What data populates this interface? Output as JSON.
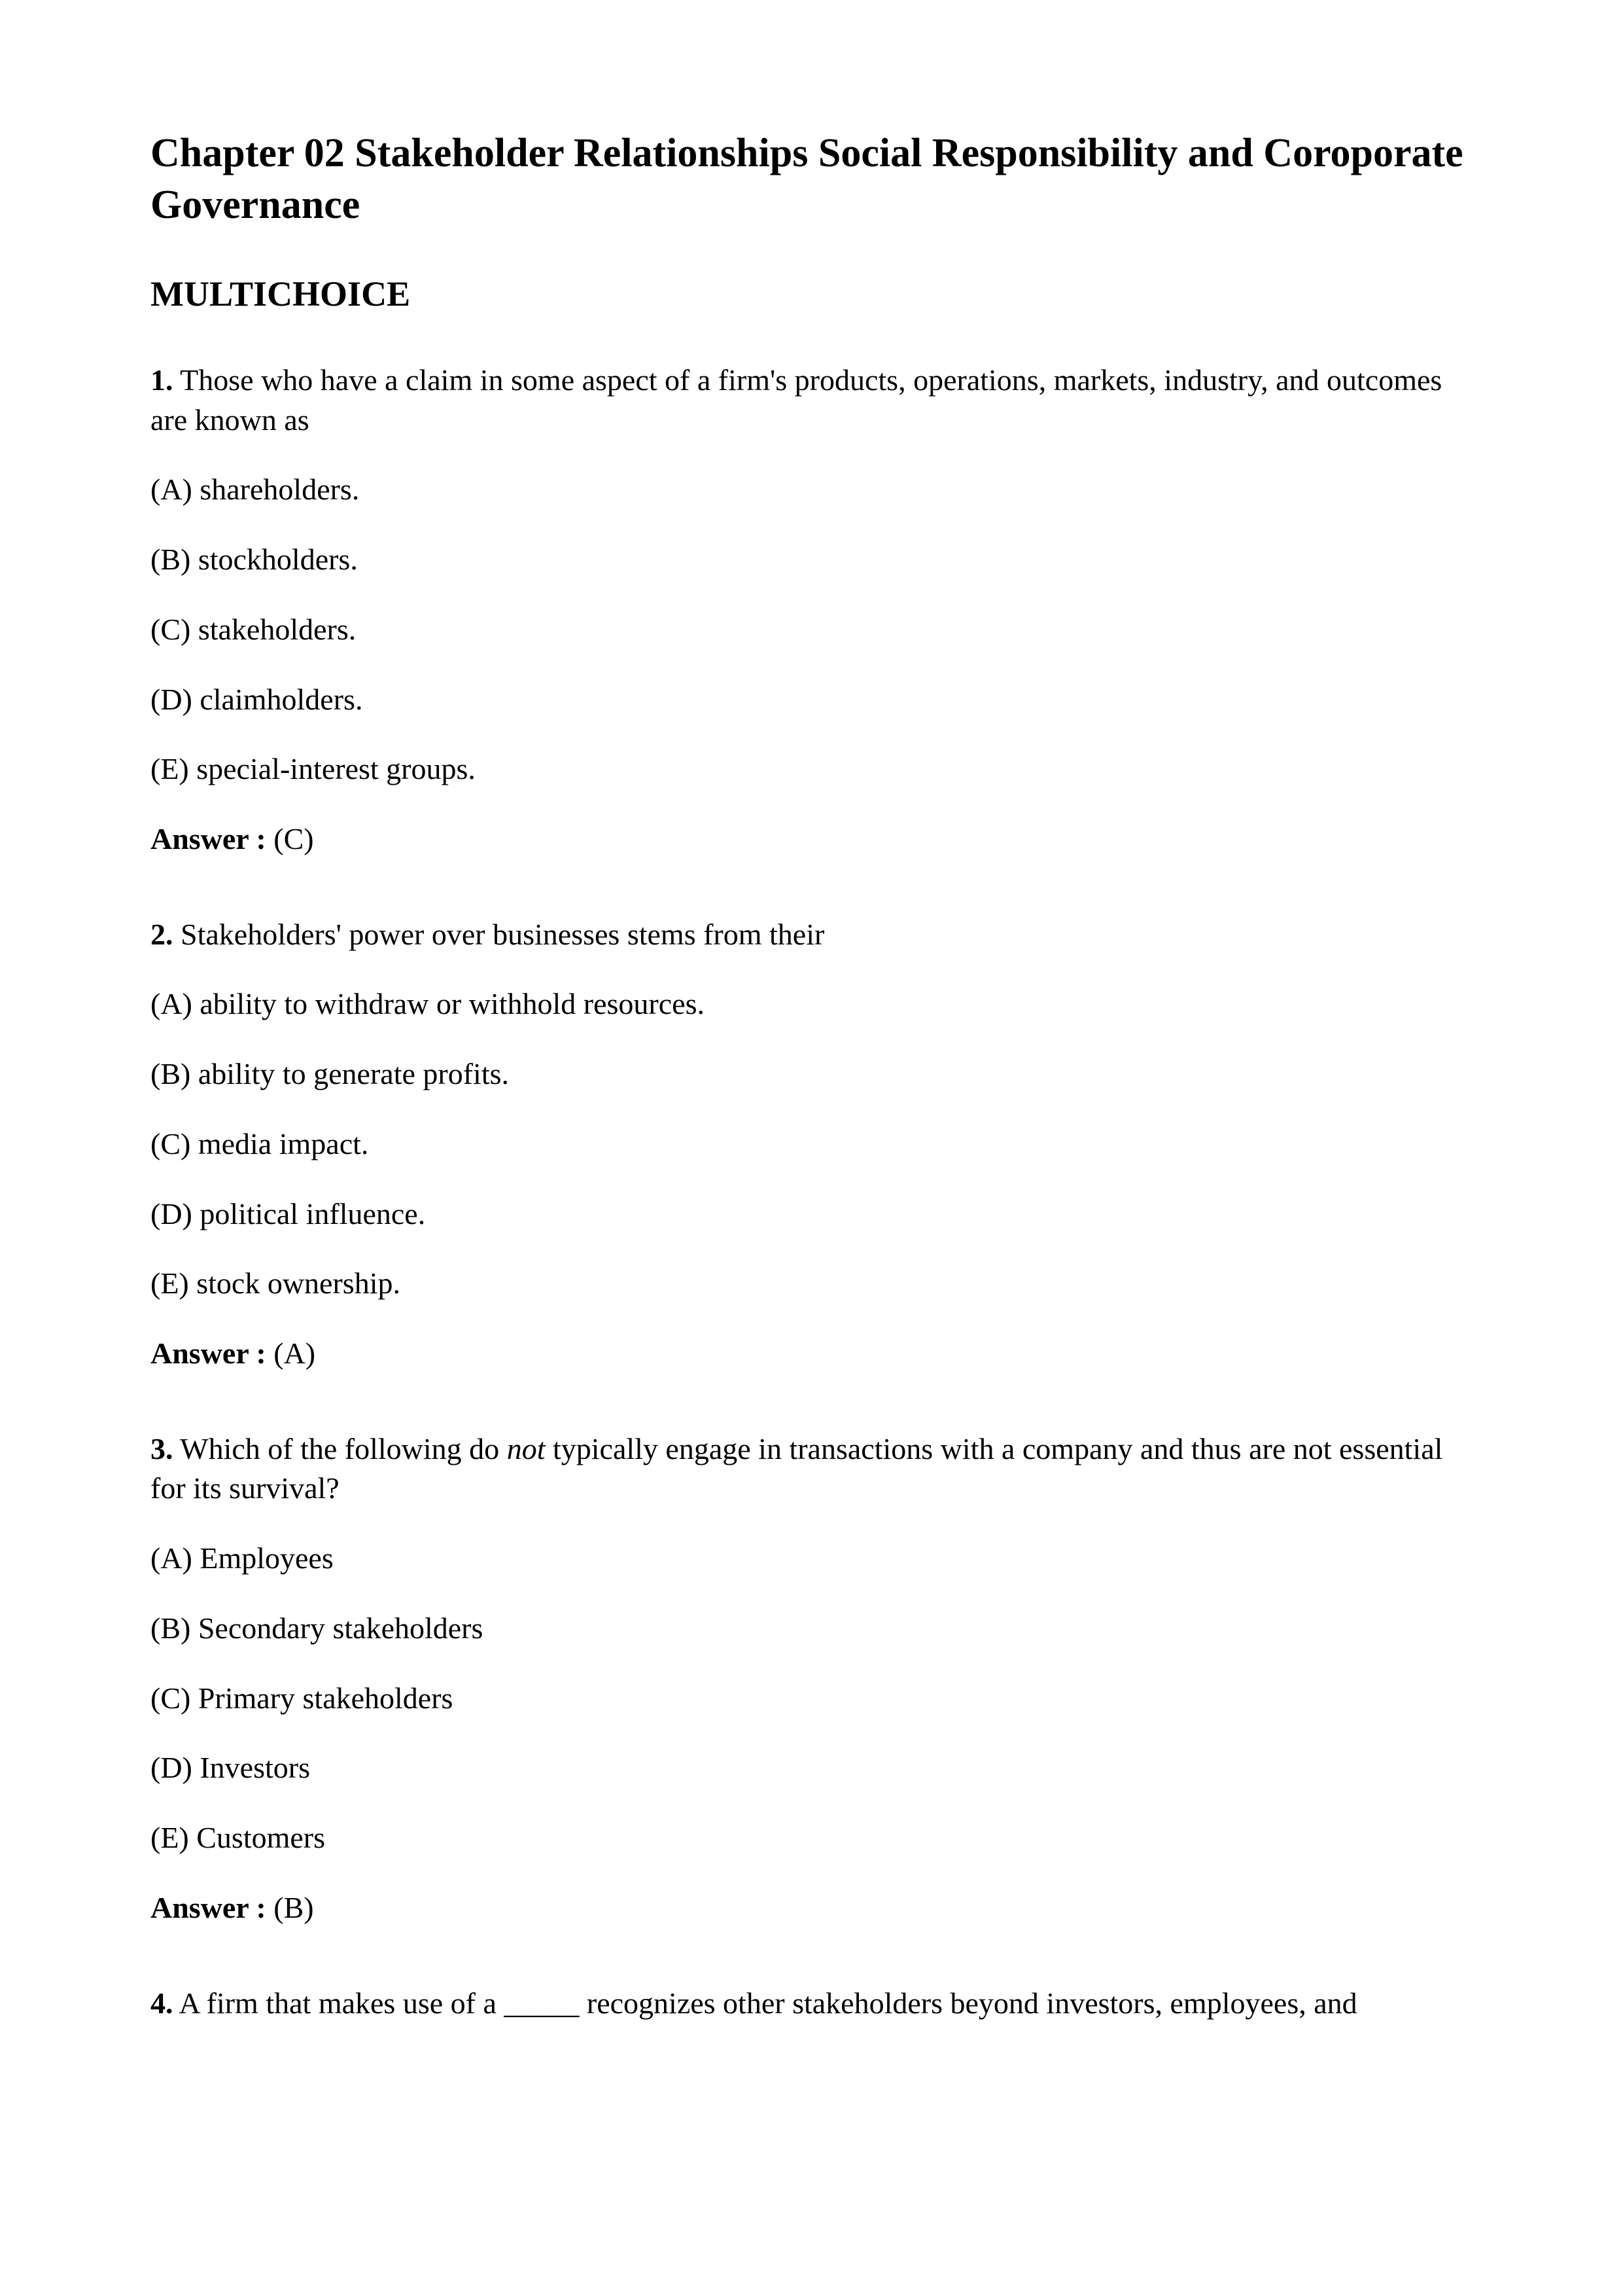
{
  "title": "Chapter 02 Stakeholder Relationships Social Responsibility and Coroporate Governance",
  "section": "MULTICHOICE",
  "answer_label": "Answer :",
  "q1": {
    "num": "1.",
    "stem": " Those who have a claim in some aspect of a firm's products, operations, markets, industry, and outcomes are known as",
    "a": "(A) shareholders.",
    "b": "(B) stockholders.",
    "c": "(C) stakeholders.",
    "d": "(D) claimholders.",
    "e": "(E) special-interest groups.",
    "ans": " (C)"
  },
  "q2": {
    "num": "2.",
    "stem": " Stakeholders' power over businesses stems from their",
    "a": "(A) ability to withdraw or withhold resources.",
    "b": "(B) ability to generate profits.",
    "c": "(C) media impact.",
    "d": "(D) political influence.",
    "e": "(E) stock ownership.",
    "ans": " (A)"
  },
  "q3": {
    "num": "3.",
    "stem_before": " Which of the following do ",
    "stem_italic": "not",
    "stem_after": " typically engage in transactions with a company and thus are not essential for its survival?",
    "a": "(A) Employees",
    "b": "(B) Secondary stakeholders",
    "c": "(C) Primary stakeholders",
    "d": "(D) Investors",
    "e": "(E) Customers",
    "ans": " (B)"
  },
  "q4": {
    "num": "4.",
    "stem": " A firm that makes use of a _____ recognizes other stakeholders beyond investors, employees, and"
  }
}
